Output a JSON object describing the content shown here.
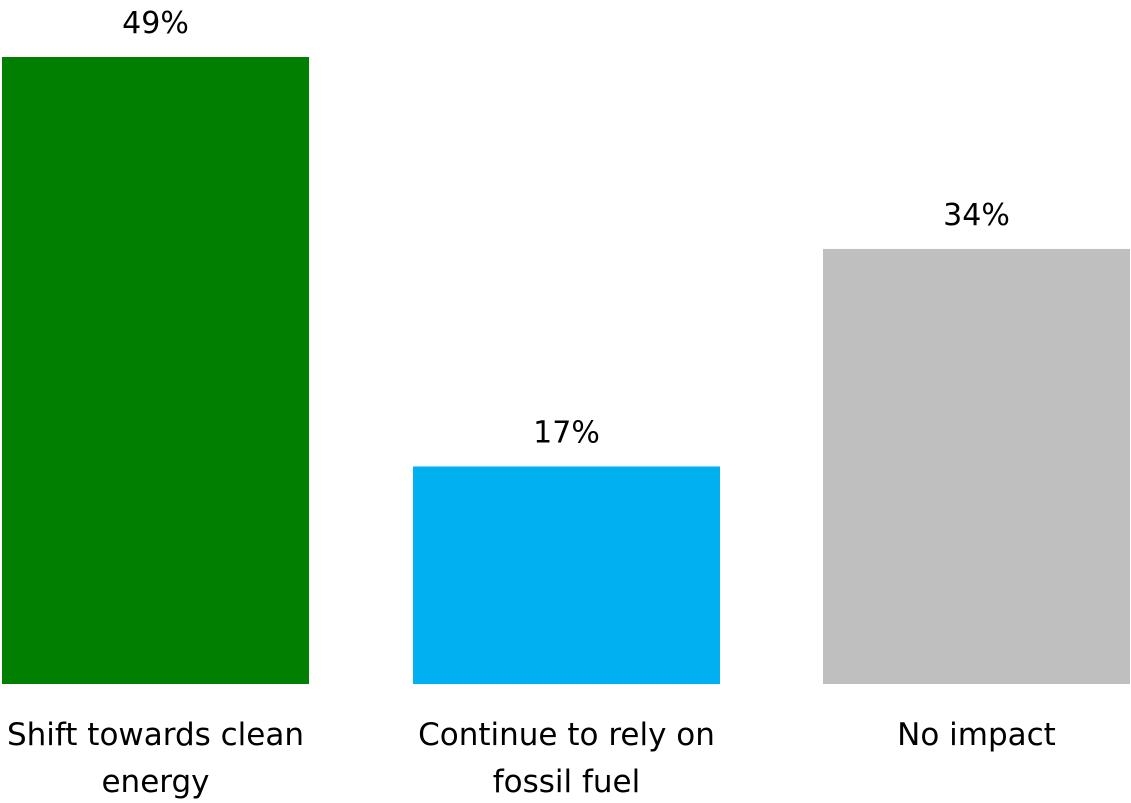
{
  "chart_data": {
    "type": "bar",
    "categories": [
      [
        "Shift towards clean",
        "energy"
      ],
      [
        "Continue to rely on",
        "fossil fuel"
      ],
      [
        "No impact"
      ]
    ],
    "values": [
      49,
      17,
      34
    ],
    "value_labels": [
      "49%",
      "17%",
      "34%"
    ],
    "colors": [
      "#007f00",
      "#00b0f0",
      "#bfbfbf"
    ],
    "unit": "%",
    "ylim": [
      0,
      49
    ],
    "grid": false,
    "legend": "none"
  }
}
